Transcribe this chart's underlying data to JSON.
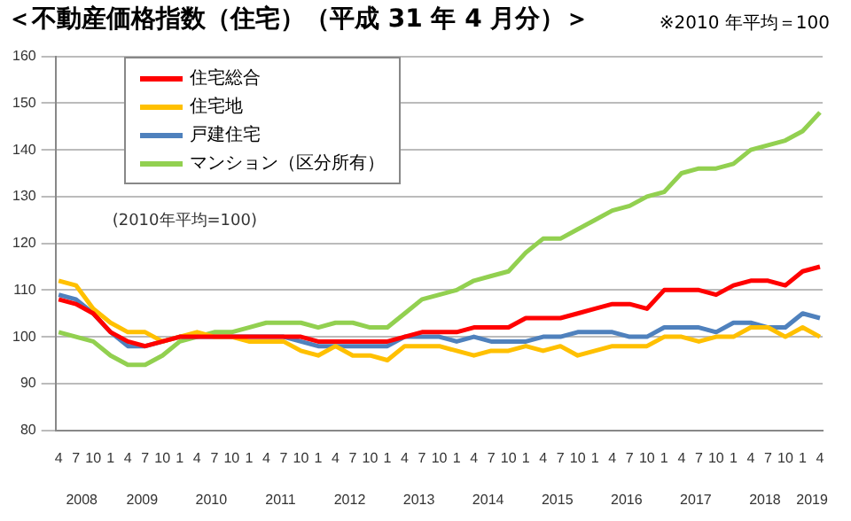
{
  "chart_data": {
    "type": "line",
    "title": "＜不動産価格指数（住宅）（平成 31 年 4 月分）＞",
    "subtitle": "※2010 年平均＝100",
    "x": [
      "2008-04",
      "2008-07",
      "2008-10",
      "2009-01",
      "2009-04",
      "2009-07",
      "2009-10",
      "2010-01",
      "2010-04",
      "2010-07",
      "2010-10",
      "2011-01",
      "2011-04",
      "2011-07",
      "2011-10",
      "2012-01",
      "2012-04",
      "2012-07",
      "2012-10",
      "2013-01",
      "2013-04",
      "2013-07",
      "2013-10",
      "2014-01",
      "2014-04",
      "2014-07",
      "2014-10",
      "2015-01",
      "2015-04",
      "2015-07",
      "2015-10",
      "2016-01",
      "2016-04",
      "2016-07",
      "2016-10",
      "2017-01",
      "2017-04",
      "2017-07",
      "2017-10",
      "2018-01",
      "2018-04",
      "2018-07",
      "2018-10",
      "2019-01",
      "2019-04"
    ],
    "xlim": [
      "2008-03-15",
      "2019-04-15"
    ],
    "xticks": [
      {
        "value": "2008-04",
        "label": "4"
      },
      {
        "value": "2008-07",
        "label": "7"
      },
      {
        "value": "2008-10",
        "label": "10"
      },
      {
        "value": "2009-01",
        "label": "1"
      },
      {
        "value": "2009-04",
        "label": "4"
      },
      {
        "value": "2009-07",
        "label": "7"
      },
      {
        "value": "2009-10",
        "label": "10"
      },
      {
        "value": "2010-01",
        "label": "1"
      },
      {
        "value": "2010-04",
        "label": "4"
      },
      {
        "value": "2010-07",
        "label": "7"
      },
      {
        "value": "2010-10",
        "label": "10"
      },
      {
        "value": "2011-01",
        "label": "1"
      },
      {
        "value": "2011-04",
        "label": "4"
      },
      {
        "value": "2011-07",
        "label": "7"
      },
      {
        "value": "2011-10",
        "label": "10"
      },
      {
        "value": "2012-01",
        "label": "1"
      },
      {
        "value": "2012-04",
        "label": "4"
      },
      {
        "value": "2012-07",
        "label": "7"
      },
      {
        "value": "2012-10",
        "label": "10"
      },
      {
        "value": "2013-01",
        "label": "1"
      },
      {
        "value": "2013-04",
        "label": "4"
      },
      {
        "value": "2013-07",
        "label": "7"
      },
      {
        "value": "2013-10",
        "label": "10"
      },
      {
        "value": "2014-01",
        "label": "1"
      },
      {
        "value": "2014-04",
        "label": "4"
      },
      {
        "value": "2014-07",
        "label": "7"
      },
      {
        "value": "2014-10",
        "label": "10"
      },
      {
        "value": "2015-01",
        "label": "1"
      },
      {
        "value": "2015-04",
        "label": "4"
      },
      {
        "value": "2015-07",
        "label": "7"
      },
      {
        "value": "2015-10",
        "label": "10"
      },
      {
        "value": "2016-01",
        "label": "1"
      },
      {
        "value": "2016-04",
        "label": "4"
      },
      {
        "value": "2016-07",
        "label": "7"
      },
      {
        "value": "2016-10",
        "label": "10"
      },
      {
        "value": "2017-01",
        "label": "1"
      },
      {
        "value": "2017-04",
        "label": "4"
      },
      {
        "value": "2017-07",
        "label": "7"
      },
      {
        "value": "2017-10",
        "label": "10"
      },
      {
        "value": "2018-01",
        "label": "1"
      },
      {
        "value": "2018-04",
        "label": "4"
      },
      {
        "value": "2018-07",
        "label": "7"
      },
      {
        "value": "2018-10",
        "label": "10"
      },
      {
        "value": "2019-01",
        "label": "1"
      },
      {
        "value": "2019-04",
        "label": "4"
      }
    ],
    "ylim": [
      80,
      160
    ],
    "yticks": [
      80,
      90,
      100,
      110,
      120,
      130,
      140,
      150,
      160
    ],
    "grid": "y",
    "legend": "top left",
    "marker": "none",
    "line_style": "solid",
    "x2lim": [
      "2008-03-15",
      "2019-04-15"
    ],
    "x2ticks": [
      {
        "value": "2008-08-01",
        "label": "2008"
      },
      {
        "value": "2009-06-15",
        "label": "2009"
      },
      {
        "value": "2010-06-15",
        "label": "2010"
      },
      {
        "value": "2011-06-15",
        "label": "2011"
      },
      {
        "value": "2012-06-15",
        "label": "2012"
      },
      {
        "value": "2013-06-15",
        "label": "2013"
      },
      {
        "value": "2014-06-15",
        "label": "2014"
      },
      {
        "value": "2015-06-15",
        "label": "2015"
      },
      {
        "value": "2016-06-15",
        "label": "2016"
      },
      {
        "value": "2017-06-15",
        "label": "2017"
      },
      {
        "value": "2018-06-15",
        "label": "2018"
      },
      {
        "value": "2019-02-20",
        "label": "2019"
      }
    ],
    "annotations": [
      "(2010年平均=100)"
    ],
    "series": [
      {
        "name": "住宅総合",
        "color": "#ff0000",
        "values": [
          108,
          107,
          105,
          101,
          99,
          98,
          99,
          100,
          100,
          100,
          100,
          100,
          100,
          100,
          100,
          99,
          99,
          99,
          99,
          99,
          100,
          101,
          101,
          101,
          102,
          102,
          102,
          104,
          104,
          104,
          105,
          106,
          107,
          107,
          106,
          110,
          110,
          110,
          109,
          111,
          112,
          112,
          111,
          114,
          115
        ]
      },
      {
        "name": "住宅地",
        "color": "#ffc000",
        "values": [
          112,
          111,
          106,
          103,
          101,
          101,
          99,
          100,
          101,
          100,
          100,
          99,
          99,
          99,
          97,
          96,
          98,
          96,
          96,
          95,
          98,
          98,
          98,
          97,
          96,
          97,
          97,
          98,
          97,
          98,
          96,
          97,
          98,
          98,
          98,
          100,
          100,
          99,
          100,
          100,
          102,
          102,
          100,
          102,
          100
        ]
      },
      {
        "name": "戸建住宅",
        "color": "#4f81bd",
        "values": [
          109,
          108,
          105,
          101,
          98,
          98,
          99,
          100,
          100,
          100,
          100,
          100,
          100,
          100,
          99,
          98,
          98,
          98,
          98,
          98,
          100,
          100,
          100,
          99,
          100,
          99,
          99,
          99,
          100,
          100,
          101,
          101,
          101,
          100,
          100,
          102,
          102,
          102,
          101,
          103,
          103,
          102,
          102,
          105,
          104
        ]
      },
      {
        "name": "マンション（区分所有）",
        "color": "#92d050",
        "values": [
          101,
          100,
          99,
          96,
          94,
          94,
          96,
          99,
          100,
          101,
          101,
          102,
          103,
          103,
          103,
          102,
          103,
          103,
          102,
          102,
          105,
          108,
          109,
          110,
          112,
          113,
          114,
          118,
          121,
          121,
          123,
          125,
          127,
          128,
          130,
          131,
          135,
          136,
          136,
          137,
          140,
          141,
          142,
          144,
          148
        ]
      }
    ]
  }
}
